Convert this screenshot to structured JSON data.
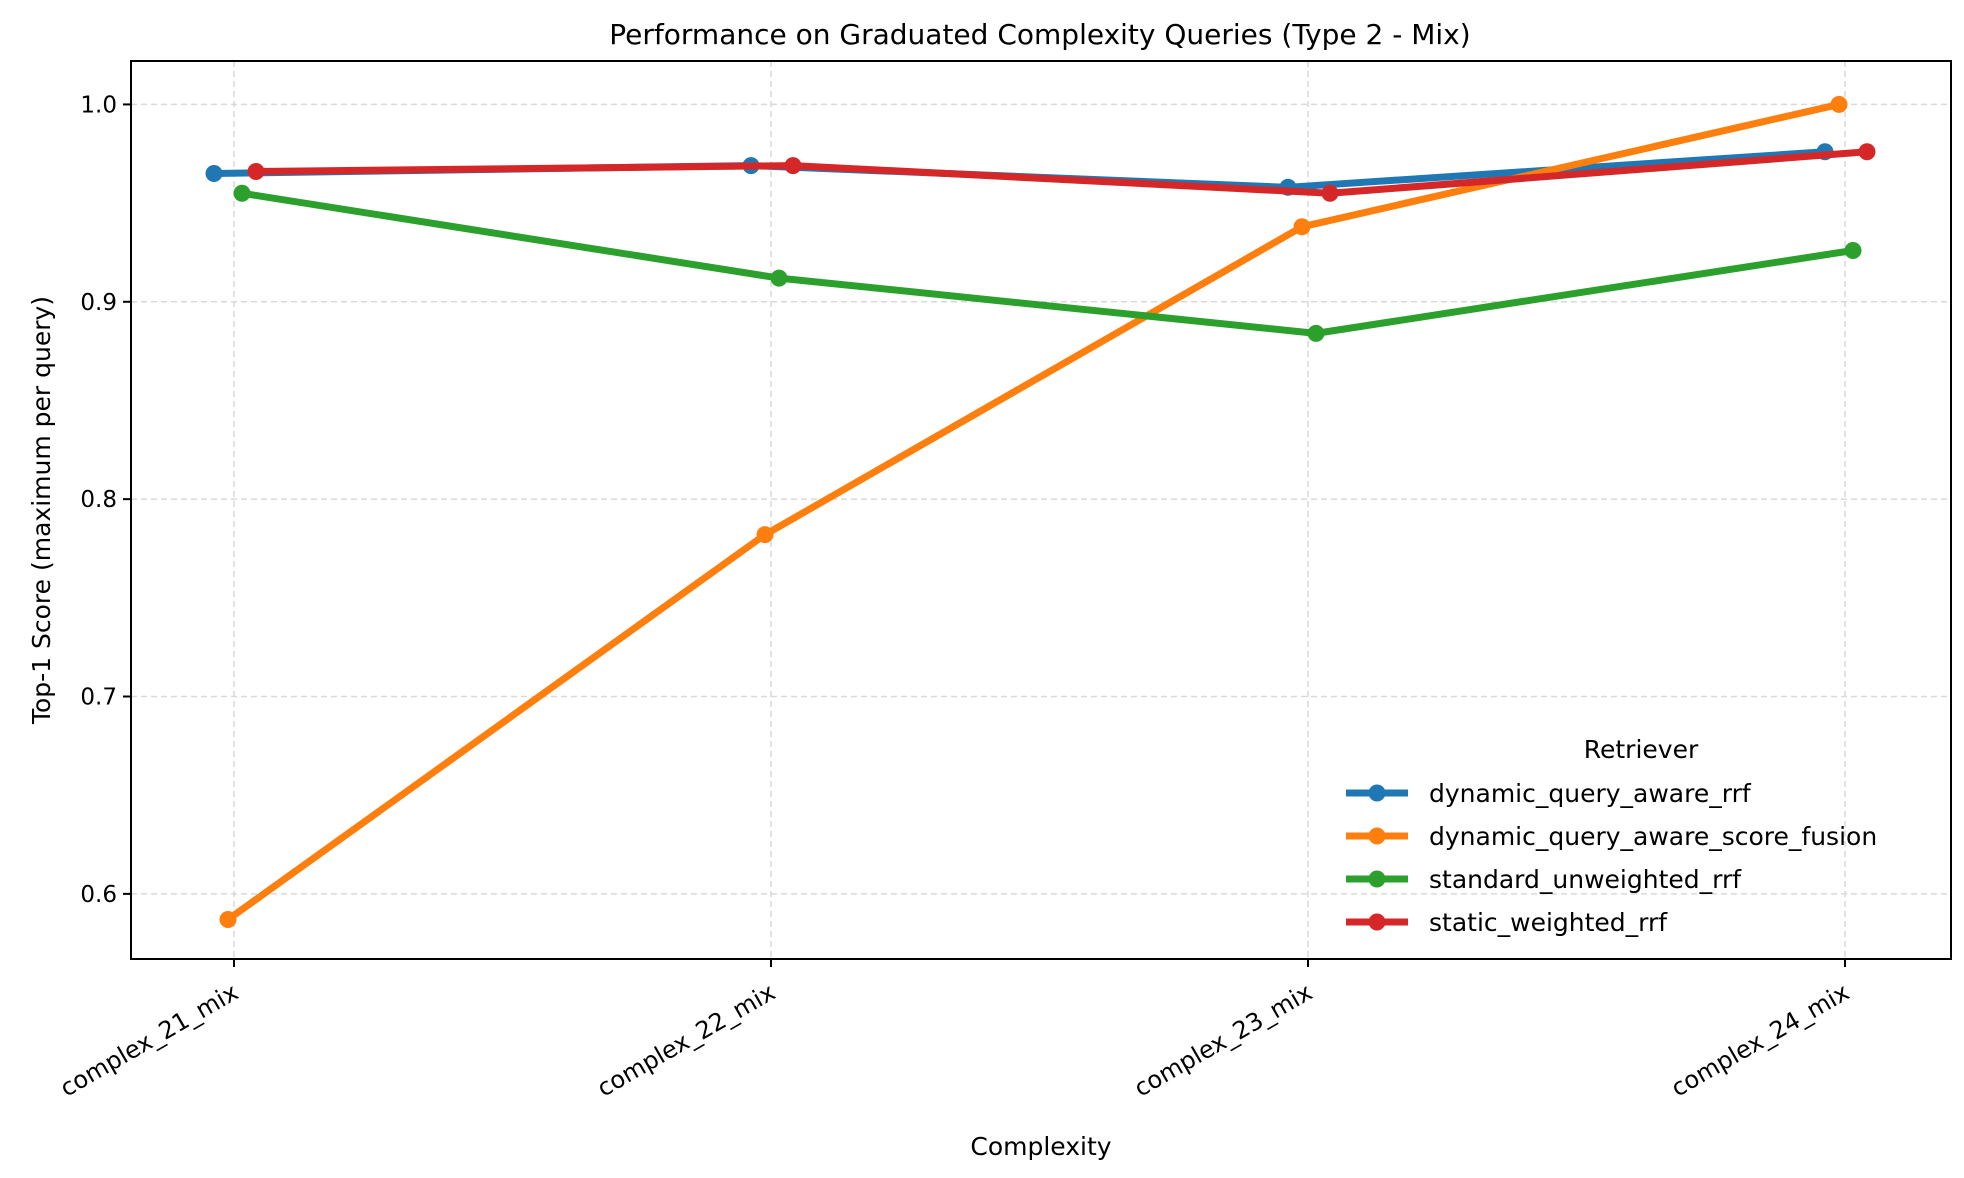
{
  "chart_data": {
    "type": "line",
    "title": "Performance on Graduated Complexity Queries (Type 2 - Mix)",
    "xlabel": "Complexity",
    "ylabel": "Top-1 Score (maximum per query)",
    "categories": [
      "complex_21_mix",
      "complex_22_mix",
      "complex_23_mix",
      "complex_24_mix"
    ],
    "ylim": [
      0.567,
      1.022
    ],
    "yticks": [
      0.6,
      0.7,
      0.8,
      0.9,
      1.0
    ],
    "ytick_labels": [
      "0.6",
      "0.7",
      "0.8",
      "0.9",
      "1.0"
    ],
    "grid": true,
    "legend": {
      "title": "Retriever",
      "placement": "lower-right"
    },
    "series": [
      {
        "name": "dynamic_query_aware_rrf",
        "color": "#1f77b4",
        "values": [
          0.965,
          0.969,
          0.958,
          0.976
        ]
      },
      {
        "name": "dynamic_query_aware_score_fusion",
        "color": "#ff7f0e",
        "values": [
          0.587,
          0.782,
          0.938,
          1.0
        ]
      },
      {
        "name": "standard_unweighted_rrf",
        "color": "#2ca02c",
        "values": [
          0.955,
          0.912,
          0.884,
          0.926
        ]
      },
      {
        "name": "static_weighted_rrf",
        "color": "#d62728",
        "values": [
          0.966,
          0.969,
          0.955,
          0.976
        ]
      }
    ]
  }
}
